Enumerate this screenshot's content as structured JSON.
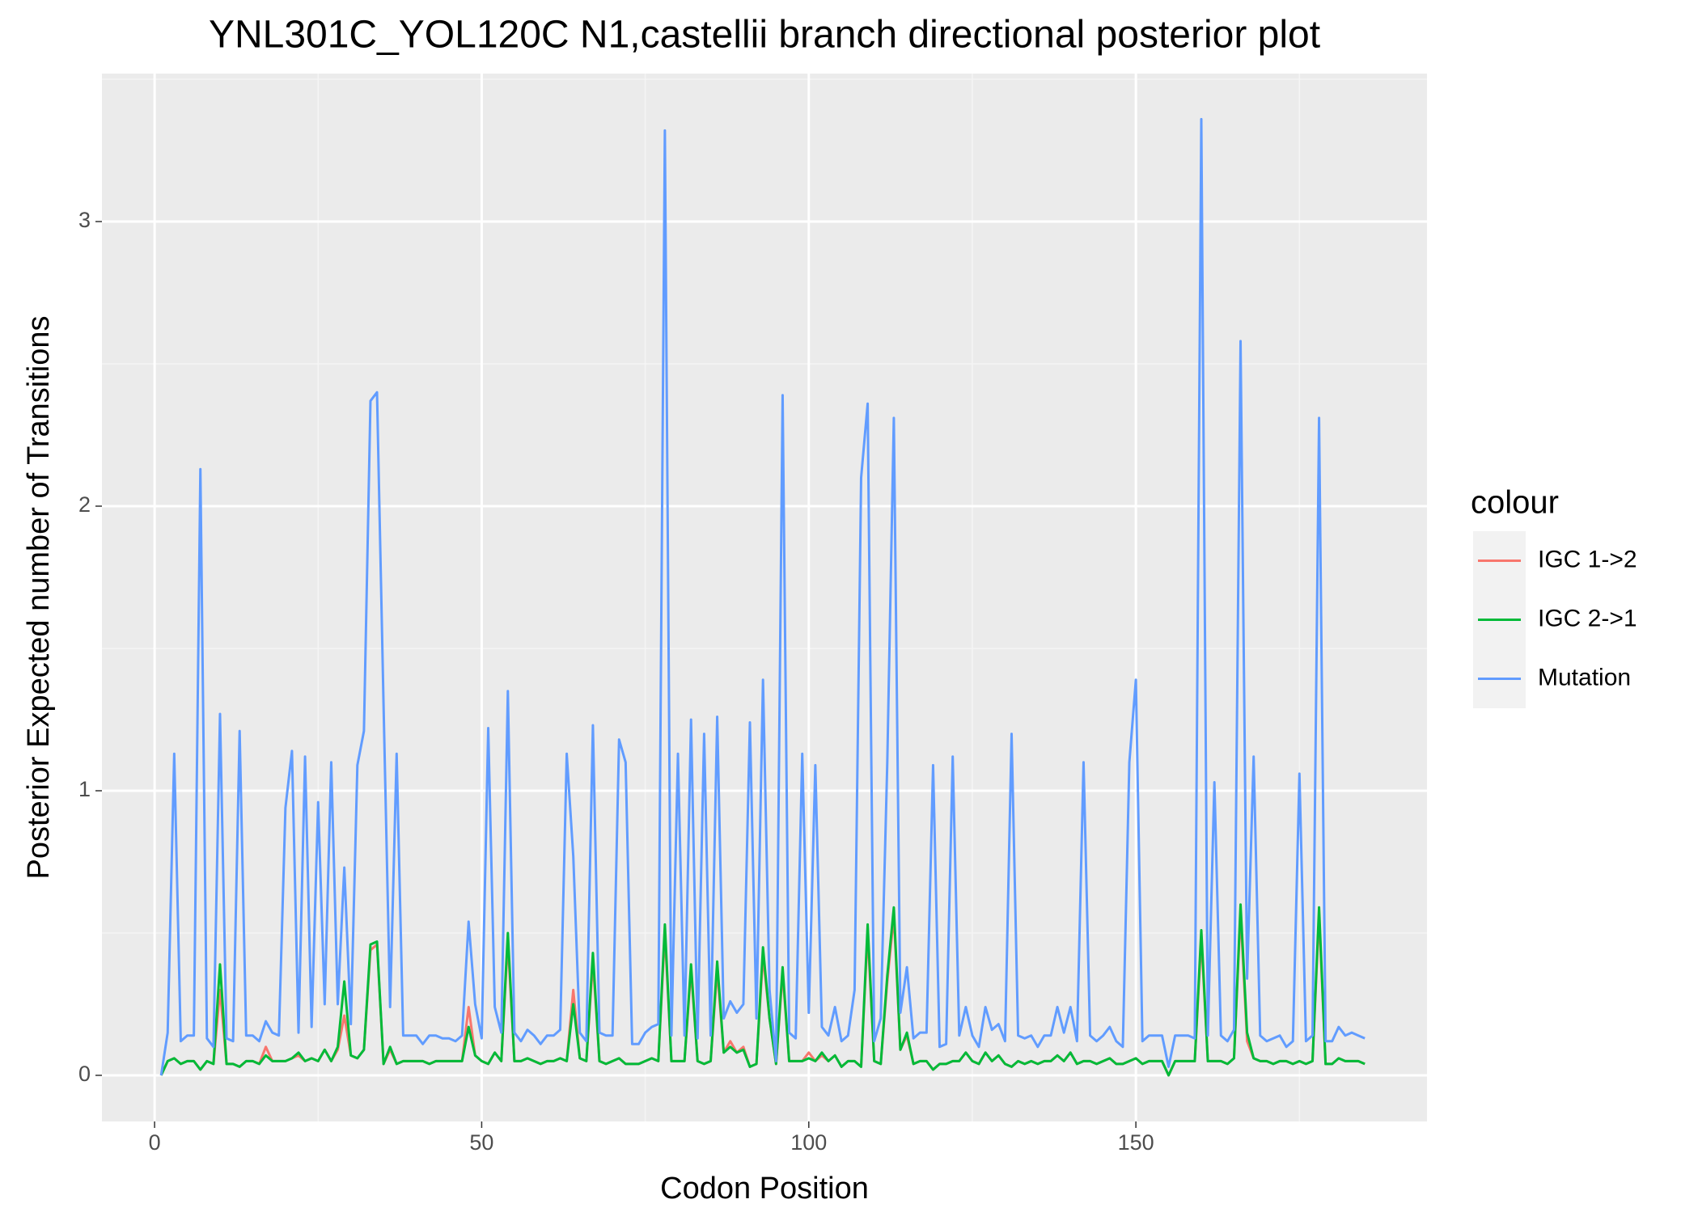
{
  "chart_data": {
    "type": "line",
    "title": "YNL301C_YOL120C N1,castellii branch directional posterior plot",
    "x_label": "Codon Position",
    "y_label": "Posterior Expected number of Transitions",
    "legend_title": "colour",
    "legend_position": "right",
    "grid": true,
    "xlim": [
      -8.05,
      194.5
    ],
    "ylim": [
      -0.162,
      3.52
    ],
    "xticks": [
      0,
      50,
      100,
      150
    ],
    "yticks": [
      0,
      1,
      2,
      3
    ],
    "xminor": [
      25,
      75,
      125,
      175
    ],
    "yminor": [
      0.5,
      1.5,
      2.5,
      3.5
    ],
    "x": [
      1,
      2,
      3,
      4,
      5,
      6,
      7,
      8,
      9,
      10,
      11,
      12,
      13,
      14,
      15,
      16,
      17,
      18,
      19,
      20,
      21,
      22,
      23,
      24,
      25,
      26,
      27,
      28,
      29,
      30,
      31,
      32,
      33,
      34,
      35,
      36,
      37,
      38,
      39,
      40,
      41,
      42,
      43,
      44,
      45,
      46,
      47,
      48,
      49,
      50,
      51,
      52,
      53,
      54,
      55,
      56,
      57,
      58,
      59,
      60,
      61,
      62,
      63,
      64,
      65,
      66,
      67,
      68,
      69,
      70,
      71,
      72,
      73,
      74,
      75,
      76,
      77,
      78,
      79,
      80,
      81,
      82,
      83,
      84,
      85,
      86,
      87,
      88,
      89,
      90,
      91,
      92,
      93,
      94,
      95,
      96,
      97,
      98,
      99,
      100,
      101,
      102,
      103,
      104,
      105,
      106,
      107,
      108,
      109,
      110,
      111,
      112,
      113,
      114,
      115,
      116,
      117,
      118,
      119,
      120,
      121,
      122,
      123,
      124,
      125,
      126,
      127,
      128,
      129,
      130,
      131,
      132,
      133,
      134,
      135,
      136,
      137,
      138,
      139,
      140,
      141,
      142,
      143,
      144,
      145,
      146,
      147,
      148,
      149,
      150,
      151,
      152,
      153,
      154,
      155,
      156,
      157,
      158,
      159,
      160,
      161,
      162,
      163,
      164,
      165,
      166,
      167,
      168,
      169,
      170,
      171,
      172,
      173,
      174,
      175,
      176,
      177,
      178,
      179,
      180,
      181,
      182,
      183,
      184,
      185
    ],
    "series": [
      {
        "name": "IGC 1->2",
        "color": "#F8766D",
        "values": [
          0,
          0.05,
          0.06,
          0.04,
          0.05,
          0.05,
          0.02,
          0.05,
          0.04,
          0.3,
          0.04,
          0.04,
          0.03,
          0.05,
          0.05,
          0.04,
          0.1,
          0.05,
          0.05,
          0.05,
          0.06,
          0.07,
          0.05,
          0.06,
          0.05,
          0.09,
          0.05,
          0.09,
          0.21,
          0.07,
          0.06,
          0.09,
          0.44,
          0.46,
          0.04,
          0.09,
          0.04,
          0.05,
          0.05,
          0.05,
          0.05,
          0.04,
          0.05,
          0.05,
          0.05,
          0.05,
          0.05,
          0.24,
          0.07,
          0.05,
          0.04,
          0.08,
          0.05,
          0.47,
          0.05,
          0.05,
          0.06,
          0.05,
          0.04,
          0.05,
          0.05,
          0.06,
          0.05,
          0.3,
          0.06,
          0.05,
          0.4,
          0.05,
          0.04,
          0.05,
          0.06,
          0.04,
          0.04,
          0.04,
          0.05,
          0.06,
          0.05,
          0.5,
          0.05,
          0.05,
          0.05,
          0.37,
          0.05,
          0.04,
          0.05,
          0.37,
          0.08,
          0.12,
          0.08,
          0.1,
          0.03,
          0.04,
          0.42,
          0.2,
          0.04,
          0.36,
          0.05,
          0.05,
          0.05,
          0.08,
          0.05,
          0.07,
          0.05,
          0.07,
          0.03,
          0.05,
          0.05,
          0.03,
          0.5,
          0.05,
          0.04,
          0.33,
          0.56,
          0.09,
          0.14,
          0.04,
          0.05,
          0.05,
          0.02,
          0.04,
          0.04,
          0.05,
          0.05,
          0.08,
          0.05,
          0.04,
          0.08,
          0.05,
          0.07,
          0.04,
          0.03,
          0.05,
          0.04,
          0.05,
          0.04,
          0.05,
          0.05,
          0.07,
          0.05,
          0.08,
          0.04,
          0.05,
          0.05,
          0.04,
          0.05,
          0.06,
          0.04,
          0.04,
          0.05,
          0.06,
          0.04,
          0.05,
          0.05,
          0.05,
          0.0,
          0.05,
          0.05,
          0.05,
          0.05,
          0.48,
          0.05,
          0.05,
          0.05,
          0.04,
          0.06,
          0.57,
          0.12,
          0.06,
          0.05,
          0.05,
          0.04,
          0.05,
          0.05,
          0.04,
          0.05,
          0.04,
          0.05,
          0.56,
          0.04,
          0.04,
          0.06,
          0.05,
          0.05,
          0.05,
          0.04
        ]
      },
      {
        "name": "IGC 2->1",
        "color": "#00BA38",
        "values": [
          0,
          0.05,
          0.06,
          0.04,
          0.05,
          0.05,
          0.02,
          0.05,
          0.04,
          0.39,
          0.04,
          0.04,
          0.03,
          0.05,
          0.05,
          0.04,
          0.07,
          0.05,
          0.05,
          0.05,
          0.06,
          0.08,
          0.05,
          0.06,
          0.05,
          0.09,
          0.05,
          0.1,
          0.33,
          0.07,
          0.06,
          0.09,
          0.46,
          0.47,
          0.04,
          0.1,
          0.04,
          0.05,
          0.05,
          0.05,
          0.05,
          0.04,
          0.05,
          0.05,
          0.05,
          0.05,
          0.05,
          0.17,
          0.07,
          0.05,
          0.04,
          0.08,
          0.05,
          0.5,
          0.05,
          0.05,
          0.06,
          0.05,
          0.04,
          0.05,
          0.05,
          0.06,
          0.05,
          0.25,
          0.06,
          0.05,
          0.43,
          0.05,
          0.04,
          0.05,
          0.06,
          0.04,
          0.04,
          0.04,
          0.05,
          0.06,
          0.05,
          0.53,
          0.05,
          0.05,
          0.05,
          0.39,
          0.05,
          0.04,
          0.05,
          0.4,
          0.08,
          0.1,
          0.08,
          0.09,
          0.03,
          0.04,
          0.45,
          0.2,
          0.04,
          0.38,
          0.05,
          0.05,
          0.05,
          0.06,
          0.05,
          0.08,
          0.05,
          0.07,
          0.03,
          0.05,
          0.05,
          0.03,
          0.53,
          0.05,
          0.04,
          0.35,
          0.59,
          0.09,
          0.15,
          0.04,
          0.05,
          0.05,
          0.02,
          0.04,
          0.04,
          0.05,
          0.05,
          0.08,
          0.05,
          0.04,
          0.08,
          0.05,
          0.07,
          0.04,
          0.03,
          0.05,
          0.04,
          0.05,
          0.04,
          0.05,
          0.05,
          0.07,
          0.05,
          0.08,
          0.04,
          0.05,
          0.05,
          0.04,
          0.05,
          0.06,
          0.04,
          0.04,
          0.05,
          0.06,
          0.04,
          0.05,
          0.05,
          0.05,
          0.0,
          0.05,
          0.05,
          0.05,
          0.05,
          0.51,
          0.05,
          0.05,
          0.05,
          0.04,
          0.06,
          0.6,
          0.15,
          0.06,
          0.05,
          0.05,
          0.04,
          0.05,
          0.05,
          0.04,
          0.05,
          0.04,
          0.05,
          0.59,
          0.04,
          0.04,
          0.06,
          0.05,
          0.05,
          0.05,
          0.04
        ]
      },
      {
        "name": "Mutation",
        "color": "#619CFF",
        "values": [
          0,
          0.15,
          1.13,
          0.12,
          0.14,
          0.14,
          2.13,
          0.13,
          0.1,
          1.27,
          0.13,
          0.12,
          1.21,
          0.14,
          0.14,
          0.12,
          0.19,
          0.15,
          0.14,
          0.94,
          1.14,
          0.15,
          1.12,
          0.17,
          0.96,
          0.25,
          1.1,
          0.25,
          0.73,
          0.18,
          1.09,
          1.21,
          2.37,
          2.4,
          1.3,
          0.24,
          1.13,
          0.14,
          0.14,
          0.14,
          0.11,
          0.14,
          0.14,
          0.13,
          0.13,
          0.12,
          0.14,
          0.54,
          0.25,
          0.13,
          1.22,
          0.24,
          0.15,
          1.35,
          0.15,
          0.12,
          0.16,
          0.14,
          0.11,
          0.14,
          0.14,
          0.16,
          1.13,
          0.77,
          0.15,
          0.12,
          1.23,
          0.15,
          0.14,
          0.14,
          1.18,
          1.1,
          0.11,
          0.11,
          0.15,
          0.17,
          0.18,
          3.32,
          0.14,
          1.13,
          0.14,
          1.25,
          0.13,
          1.2,
          0.14,
          1.26,
          0.2,
          0.26,
          0.22,
          0.25,
          1.24,
          0.2,
          1.39,
          0.3,
          0.05,
          2.39,
          0.15,
          0.13,
          1.13,
          0.22,
          1.09,
          0.17,
          0.14,
          0.24,
          0.12,
          0.14,
          0.3,
          2.1,
          2.36,
          0.12,
          0.2,
          1.1,
          2.31,
          0.22,
          0.38,
          0.13,
          0.15,
          0.15,
          1.09,
          0.1,
          0.11,
          1.12,
          0.14,
          0.24,
          0.14,
          0.1,
          0.24,
          0.16,
          0.18,
          0.12,
          1.2,
          0.14,
          0.13,
          0.14,
          0.1,
          0.14,
          0.14,
          0.24,
          0.15,
          0.24,
          0.12,
          1.1,
          0.14,
          0.12,
          0.14,
          0.17,
          0.12,
          0.1,
          1.1,
          1.39,
          0.12,
          0.14,
          0.14,
          0.14,
          0.03,
          0.14,
          0.14,
          0.14,
          0.13,
          3.36,
          0.14,
          1.03,
          0.14,
          0.12,
          0.16,
          2.58,
          0.34,
          1.12,
          0.14,
          0.12,
          0.13,
          0.14,
          0.1,
          0.12,
          1.06,
          0.12,
          0.14,
          2.31,
          0.12,
          0.12,
          0.17,
          0.14,
          0.15,
          0.14,
          0.13
        ]
      }
    ]
  }
}
